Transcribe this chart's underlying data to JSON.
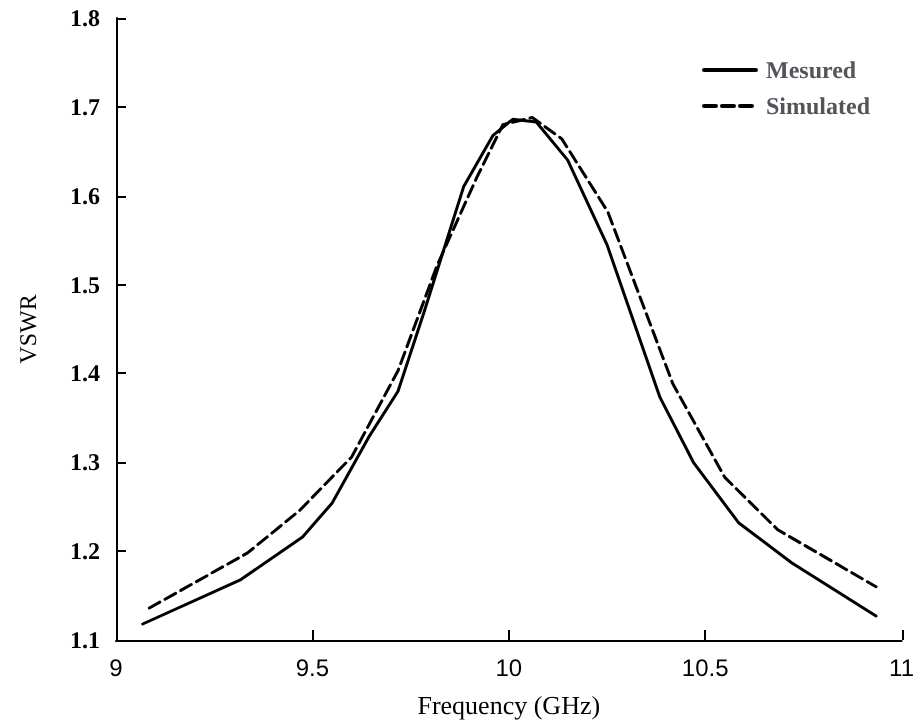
{
  "chart_data": {
    "type": "line",
    "xlabel": "Frequency (GHz)",
    "ylabel": "VSWR",
    "xlim": [
      9,
      11
    ],
    "xticks": [
      9,
      9.5,
      10,
      10.5,
      11
    ],
    "ylim": [
      1.1,
      1.8
    ],
    "yticks": [
      1.1,
      1.2,
      1.3,
      1.4,
      1.5,
      1.6,
      1.7,
      1.8
    ],
    "grid": false,
    "legend": "top right",
    "marker": "none",
    "series": [
      {
        "name": "Mesured",
        "color": "#000000",
        "line_style": "solid",
        "x": [
          9.068,
          9.318,
          9.475,
          9.55,
          9.643,
          9.718,
          9.785,
          9.885,
          9.96,
          10.01,
          10.07,
          10.15,
          10.25,
          10.385,
          10.47,
          10.585,
          10.72,
          10.935
        ],
        "values": [
          1.118,
          1.168,
          1.216,
          1.254,
          1.328,
          1.38,
          1.47,
          1.61,
          1.668,
          1.686,
          1.683,
          1.64,
          1.545,
          1.373,
          1.3,
          1.232,
          1.187,
          1.127
        ]
      },
      {
        "name": "Simulated",
        "color": "#000000",
        "line_style": "dashed",
        "x": [
          9.085,
          9.335,
          9.468,
          9.6,
          9.718,
          9.818,
          9.918,
          9.985,
          10.06,
          10.135,
          10.252,
          10.418,
          10.55,
          10.685,
          10.935
        ],
        "values": [
          1.136,
          1.198,
          1.246,
          1.306,
          1.403,
          1.522,
          1.62,
          1.68,
          1.688,
          1.664,
          1.582,
          1.388,
          1.283,
          1.224,
          1.16
        ]
      }
    ]
  }
}
